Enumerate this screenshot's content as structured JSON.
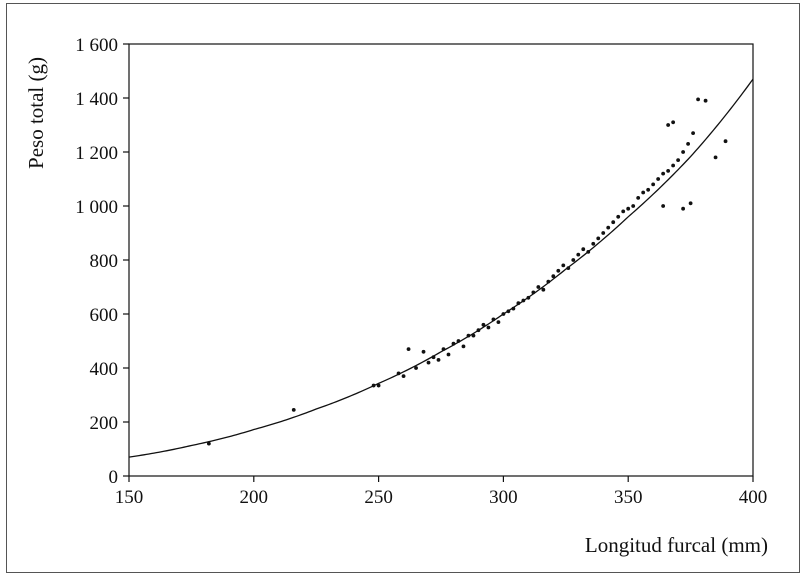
{
  "chart_data": {
    "type": "scatter",
    "xlabel": "Longitud furcal (mm)",
    "ylabel": "Peso total (g)",
    "xlim": [
      150,
      400
    ],
    "ylim": [
      0,
      1600
    ],
    "x_ticks": [
      150,
      200,
      250,
      300,
      350,
      400
    ],
    "y_ticks": [
      0,
      200,
      400,
      600,
      800,
      1000,
      1200,
      1400,
      1600
    ],
    "x_tick_labels": [
      "150",
      "200",
      "250",
      "300",
      "350",
      "400"
    ],
    "y_tick_labels": [
      "0",
      "200",
      "400",
      "600",
      "800",
      "1 000",
      "1 200",
      "1 400",
      "1 600"
    ],
    "grid": false,
    "legend": false,
    "fit_curve": {
      "x": [
        150,
        175,
        200,
        225,
        250,
        275,
        300,
        325,
        350,
        375,
        400
      ],
      "y": [
        70,
        113,
        172,
        248,
        343,
        460,
        600,
        766,
        960,
        1183,
        1470
      ]
    },
    "series": [
      {
        "x": [
          182,
          216,
          248,
          250,
          258,
          260,
          262,
          265,
          268,
          270,
          272,
          274,
          276,
          278,
          280,
          282,
          284,
          286,
          288,
          290,
          292,
          294,
          296,
          298,
          300,
          302,
          304,
          306,
          308,
          310,
          312,
          314,
          316,
          318,
          320,
          322,
          324,
          326,
          328,
          330,
          332,
          334,
          336,
          338,
          340,
          342,
          344,
          346,
          348,
          350,
          352,
          354,
          356,
          358,
          360,
          362,
          364,
          366,
          368,
          370,
          372,
          374,
          376,
          378,
          381,
          385,
          389,
          375,
          372,
          366,
          364,
          368
        ],
        "y": [
          120,
          245,
          335,
          335,
          380,
          370,
          470,
          400,
          460,
          420,
          440,
          430,
          470,
          450,
          490,
          500,
          480,
          520,
          520,
          540,
          560,
          550,
          580,
          570,
          600,
          610,
          620,
          640,
          650,
          660,
          680,
          700,
          690,
          720,
          740,
          760,
          780,
          770,
          800,
          820,
          840,
          830,
          860,
          880,
          900,
          920,
          940,
          960,
          980,
          990,
          1000,
          1030,
          1050,
          1060,
          1080,
          1100,
          1120,
          1130,
          1150,
          1170,
          1200,
          1230,
          1270,
          1395,
          1390,
          1180,
          1240,
          1010,
          990,
          1300,
          1000,
          1310
        ]
      }
    ]
  }
}
